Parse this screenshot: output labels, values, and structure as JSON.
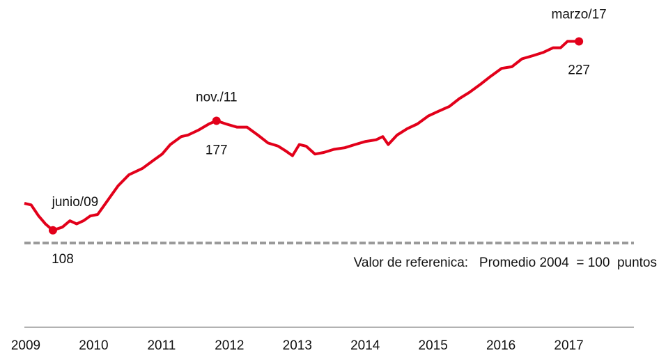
{
  "chart_data": {
    "type": "line",
    "x": [
      2009.0,
      2009.1,
      2009.21,
      2009.31,
      2009.42,
      2009.56,
      2009.67,
      2009.77,
      2009.87,
      2009.97,
      2010.08,
      2010.18,
      2010.28,
      2010.38,
      2010.54,
      2010.64,
      2010.74,
      2010.9,
      2011.03,
      2011.15,
      2011.31,
      2011.41,
      2011.56,
      2011.72,
      2011.83,
      2011.97,
      2012.13,
      2012.28,
      2012.44,
      2012.59,
      2012.74,
      2012.85,
      2012.95,
      2013.05,
      2013.15,
      2013.28,
      2013.41,
      2013.56,
      2013.72,
      2013.87,
      2014.03,
      2014.18,
      2014.28,
      2014.36,
      2014.49,
      2014.64,
      2014.79,
      2014.95,
      2015.1,
      2015.26,
      2015.41,
      2015.56,
      2015.72,
      2015.87,
      2016.03,
      2016.18,
      2016.33,
      2016.49,
      2016.64,
      2016.79,
      2016.9,
      2017.0,
      2017.17
    ],
    "series": [
      {
        "color": "#e2001a",
        "values": [
          125,
          124,
          117,
          112,
          108,
          110,
          114,
          112,
          114,
          117,
          118,
          124,
          130,
          136,
          143,
          145,
          147,
          152,
          156,
          162,
          167,
          168,
          171,
          175,
          177,
          175,
          173,
          173,
          168,
          163,
          161,
          158,
          155,
          162,
          161,
          156,
          157,
          159,
          160,
          162,
          164,
          165,
          167,
          162,
          168,
          172,
          175,
          180,
          183,
          186,
          191,
          195,
          200,
          205,
          210,
          211,
          216,
          218,
          220,
          223,
          223,
          227,
          227
        ]
      }
    ],
    "xlim": [
      2009,
      2018
    ],
    "xticks": [
      2009,
      2010,
      2011,
      2012,
      2013,
      2014,
      2015,
      2016,
      2017
    ],
    "ylim": [
      50,
      250
    ],
    "annotations": [
      {
        "text": "junio/09",
        "x": 2009.42,
        "y": 108
      },
      {
        "text": "nov./11",
        "x": 2011.83,
        "y": 177
      },
      {
        "text": "marzo/17",
        "x": 2017.17,
        "y": 227
      }
    ],
    "reference": {
      "value": 100,
      "label": "Valor de referenica:   Promedio 2004  = 100  puntos",
      "color": "#9a9a9a"
    }
  }
}
